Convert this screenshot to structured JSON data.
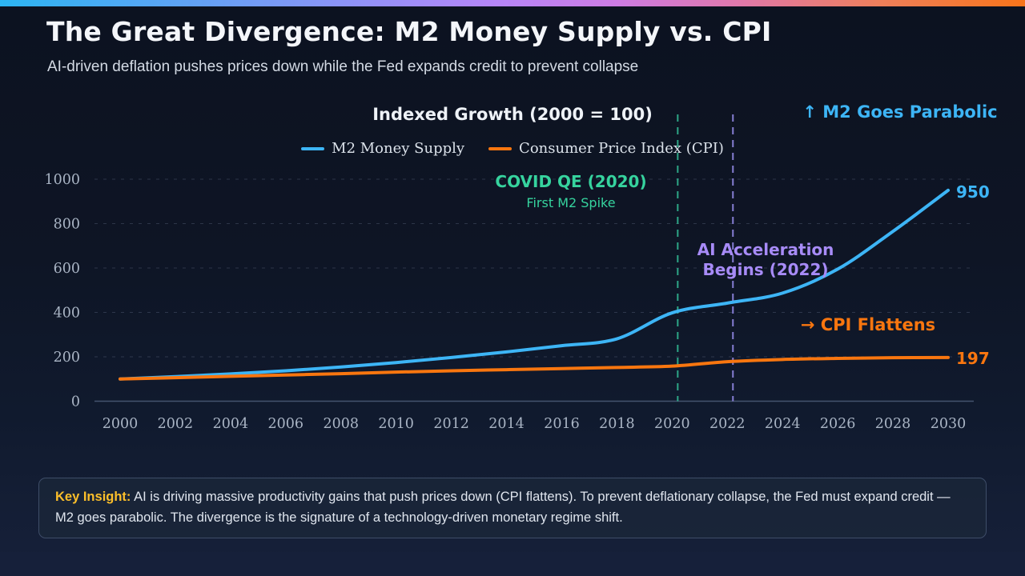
{
  "header": {
    "title": "The Great Divergence: M2 Money Supply vs. CPI",
    "subtitle": "AI-driven deflation pushes prices down while the Fed expands credit to prevent collapse"
  },
  "chart_data": {
    "type": "line",
    "title": "Indexed Growth (2000 = 100)",
    "x": [
      2000,
      2002,
      2004,
      2006,
      2008,
      2010,
      2012,
      2014,
      2016,
      2018,
      2020,
      2022,
      2024,
      2026,
      2028,
      2030
    ],
    "series": [
      {
        "name": "M2 Money Supply",
        "color": "#3db5f6",
        "values": [
          100,
          111,
          123,
          137,
          154,
          174,
          197,
          222,
          250,
          281,
          398,
          442,
          487,
          595,
          765,
          950
        ],
        "end_label": "950"
      },
      {
        "name": "Consumer Price Index (CPI)",
        "color": "#f9760f",
        "values": [
          100,
          106,
          112,
          118,
          124,
          131,
          137,
          142,
          147,
          152,
          158,
          178,
          188,
          193,
          196,
          197
        ],
        "end_label": "197"
      }
    ],
    "ylim": [
      0,
      1000
    ],
    "yticks": [
      0,
      200,
      400,
      600,
      800,
      1000
    ],
    "grid": "dashed horizontal gridlines, solid zero axis",
    "legend_position": "top center",
    "vlines": [
      {
        "year": 2020,
        "color": "#2fae8c",
        "style": "dashed"
      },
      {
        "year": 2022,
        "color": "#8d84dd",
        "style": "dashed"
      }
    ]
  },
  "annotations": {
    "m2_parabolic": "↑ M2 Goes Parabolic",
    "covid_title": "COVID QE (2020)",
    "covid_sub": "First M2 Spike",
    "ai_line1": "AI Acceleration",
    "ai_line2": "Begins (2022)",
    "cpi_flattens": "→ CPI Flattens"
  },
  "insight": {
    "label": "Key Insight:",
    "text": " AI is driving massive productivity gains that push prices down (CPI flattens). To prevent deflationary collapse, the Fed must expand credit — M2 goes parabolic. The divergence is the signature of a technology-driven monetary regime shift."
  },
  "colors": {
    "background": "#0e1525",
    "m2_line": "#3db5f6",
    "cpi_line": "#f9760f",
    "covid_green": "#36d39e",
    "ai_purple": "#a78bf7",
    "insight_amber": "#fcbf2a",
    "tick_text": "#a9b4c4",
    "accent_gradient": [
      "#2cb5f2",
      "#b586f8",
      "#f8741a"
    ]
  }
}
